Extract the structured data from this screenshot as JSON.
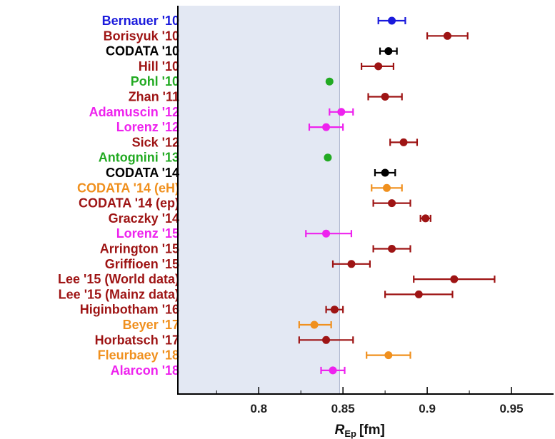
{
  "chart_data": {
    "type": "scatter",
    "title": "",
    "xlabel": "R",
    "xlabel_subscript": "Ep",
    "xlabel_unit": "[fm]",
    "xlim": [
      0.752,
      0.975
    ],
    "xticks": [
      "0.8",
      "0.85",
      "0.9",
      "0.95"
    ],
    "xtick_values": [
      0.8,
      0.85,
      0.9,
      0.95
    ],
    "shaded_region": [
      0.752,
      0.848
    ],
    "colors": {
      "blue": "#1a1adc",
      "darkred": "#9e1414",
      "black": "#000000",
      "green": "#22aa22",
      "magenta": "#ee22ee",
      "orange": "#f0901e",
      "shade": "#e3e8f3",
      "shade_edge": "#aab4cc"
    },
    "points": [
      {
        "label": "Bernauer '10",
        "color": "blue",
        "value": 0.879,
        "lo": 0.871,
        "hi": 0.887
      },
      {
        "label": "Borisyuk '10",
        "color": "darkred",
        "value": 0.912,
        "lo": 0.9,
        "hi": 0.924
      },
      {
        "label": "CODATA '10",
        "color": "black",
        "value": 0.877,
        "lo": 0.872,
        "hi": 0.882
      },
      {
        "label": "Hill '10",
        "color": "darkred",
        "value": 0.871,
        "lo": 0.861,
        "hi": 0.88
      },
      {
        "label": "Pohl '10",
        "color": "green",
        "value": 0.842,
        "lo": 0.842,
        "hi": 0.842
      },
      {
        "label": "Zhan '11",
        "color": "darkred",
        "value": 0.875,
        "lo": 0.865,
        "hi": 0.885
      },
      {
        "label": "Adamuscin '12",
        "color": "magenta",
        "value": 0.849,
        "lo": 0.842,
        "hi": 0.856
      },
      {
        "label": "Lorenz '12",
        "color": "magenta",
        "value": 0.84,
        "lo": 0.83,
        "hi": 0.85
      },
      {
        "label": "Sick '12",
        "color": "darkred",
        "value": 0.886,
        "lo": 0.878,
        "hi": 0.894
      },
      {
        "label": "Antognini '13",
        "color": "green",
        "value": 0.841,
        "lo": 0.841,
        "hi": 0.841
      },
      {
        "label": "CODATA '14",
        "color": "black",
        "value": 0.875,
        "lo": 0.869,
        "hi": 0.881
      },
      {
        "label": "CODATA '14 (eH)",
        "color": "orange",
        "value": 0.876,
        "lo": 0.867,
        "hi": 0.885
      },
      {
        "label": "CODATA '14 (ep)",
        "color": "darkred",
        "value": 0.879,
        "lo": 0.868,
        "hi": 0.89
      },
      {
        "label": "Graczky '14",
        "color": "darkred",
        "value": 0.899,
        "lo": 0.896,
        "hi": 0.902
      },
      {
        "label": "Lorenz '15",
        "color": "magenta",
        "value": 0.84,
        "lo": 0.828,
        "hi": 0.855
      },
      {
        "label": "Arrington '15",
        "color": "darkred",
        "value": 0.879,
        "lo": 0.868,
        "hi": 0.89
      },
      {
        "label": "Griffioen '15",
        "color": "darkred",
        "value": 0.855,
        "lo": 0.844,
        "hi": 0.866
      },
      {
        "label": "Lee '15 (World data)",
        "color": "darkred",
        "value": 0.916,
        "lo": 0.892,
        "hi": 0.94
      },
      {
        "label": "Lee '15 (Mainz data)",
        "color": "darkred",
        "value": 0.895,
        "lo": 0.875,
        "hi": 0.915
      },
      {
        "label": "Higinbotham '16",
        "color": "darkred",
        "value": 0.845,
        "lo": 0.84,
        "hi": 0.85
      },
      {
        "label": "Beyer '17",
        "color": "orange",
        "value": 0.833,
        "lo": 0.824,
        "hi": 0.843
      },
      {
        "label": "Horbatsch '17",
        "color": "darkred",
        "value": 0.84,
        "lo": 0.824,
        "hi": 0.856
      },
      {
        "label": "Fleurbaey '18",
        "color": "orange",
        "value": 0.877,
        "lo": 0.864,
        "hi": 0.89
      },
      {
        "label": "Alarcon '18",
        "color": "magenta",
        "value": 0.844,
        "lo": 0.837,
        "hi": 0.851
      }
    ]
  }
}
